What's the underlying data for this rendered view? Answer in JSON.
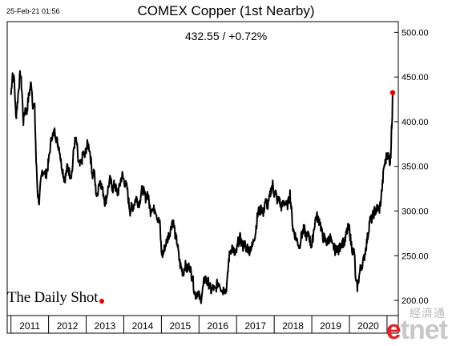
{
  "header": {
    "timestamp": "25-Feb-21 01:56",
    "title": "COMEX Copper (1st Nearby)",
    "subtitle": "432.55  /  +0.72%"
  },
  "brand": {
    "text": "The Daily Shot"
  },
  "watermark": {
    "chinese": "經濟通",
    "e": "e",
    "rest": "tnet"
  },
  "colors": {
    "line": "#000000",
    "last_point": "#e00000",
    "frame": "#000000"
  },
  "chart_data": {
    "type": "line",
    "title": "COMEX Copper (1st Nearby)",
    "subtitle": "432.55  /  +0.72%",
    "xlabel": "",
    "ylabel": "",
    "x_tick_labels": [
      "2011",
      "2012",
      "2013",
      "2014",
      "2015",
      "2016",
      "2017",
      "2018",
      "2019",
      "2020"
    ],
    "y_ticks": [
      200,
      250,
      300,
      350,
      400,
      450,
      500
    ],
    "y_tick_labels": [
      "200.00",
      "250.00",
      "300.00",
      "350.00",
      "400.00",
      "450.00",
      "500.00"
    ],
    "ylim": [
      183,
      512
    ],
    "xlim": [
      2010.9,
      2021.3
    ],
    "grid": false,
    "y_axis_position": "right",
    "last_value": 432.55,
    "last_marker_color": "red",
    "series": [
      {
        "points": [
          [
            2011.0,
            430
          ],
          [
            2011.04,
            455
          ],
          [
            2011.09,
            445
          ],
          [
            2011.13,
            405
          ],
          [
            2011.17,
            420
          ],
          [
            2011.21,
            440
          ],
          [
            2011.25,
            455
          ],
          [
            2011.29,
            435
          ],
          [
            2011.33,
            400
          ],
          [
            2011.38,
            415
          ],
          [
            2011.42,
            410
          ],
          [
            2011.46,
            425
          ],
          [
            2011.5,
            435
          ],
          [
            2011.54,
            445
          ],
          [
            2011.58,
            420
          ],
          [
            2011.63,
            415
          ],
          [
            2011.67,
            355
          ],
          [
            2011.71,
            320
          ],
          [
            2011.75,
            310
          ],
          [
            2011.79,
            330
          ],
          [
            2011.83,
            345
          ],
          [
            2011.88,
            345
          ],
          [
            2011.92,
            340
          ],
          [
            2011.96,
            345
          ],
          [
            2012.0,
            355
          ],
          [
            2012.04,
            370
          ],
          [
            2012.09,
            385
          ],
          [
            2012.13,
            385
          ],
          [
            2012.17,
            390
          ],
          [
            2012.21,
            380
          ],
          [
            2012.25,
            375
          ],
          [
            2012.29,
            370
          ],
          [
            2012.33,
            355
          ],
          [
            2012.38,
            345
          ],
          [
            2012.42,
            335
          ],
          [
            2012.46,
            340
          ],
          [
            2012.5,
            350
          ],
          [
            2012.54,
            345
          ],
          [
            2012.58,
            340
          ],
          [
            2012.63,
            345
          ],
          [
            2012.67,
            370
          ],
          [
            2012.71,
            380
          ],
          [
            2012.75,
            375
          ],
          [
            2012.79,
            355
          ],
          [
            2012.83,
            350
          ],
          [
            2012.88,
            355
          ],
          [
            2012.92,
            365
          ],
          [
            2012.96,
            360
          ],
          [
            2013.0,
            370
          ],
          [
            2013.04,
            375
          ],
          [
            2013.09,
            370
          ],
          [
            2013.13,
            355
          ],
          [
            2013.17,
            340
          ],
          [
            2013.21,
            345
          ],
          [
            2013.25,
            325
          ],
          [
            2013.29,
            315
          ],
          [
            2013.33,
            330
          ],
          [
            2013.38,
            335
          ],
          [
            2013.42,
            325
          ],
          [
            2013.46,
            320
          ],
          [
            2013.5,
            310
          ],
          [
            2013.54,
            315
          ],
          [
            2013.58,
            325
          ],
          [
            2013.63,
            335
          ],
          [
            2013.67,
            330
          ],
          [
            2013.71,
            325
          ],
          [
            2013.75,
            330
          ],
          [
            2013.79,
            325
          ],
          [
            2013.83,
            320
          ],
          [
            2013.88,
            325
          ],
          [
            2013.92,
            335
          ],
          [
            2013.96,
            340
          ],
          [
            2014.0,
            335
          ],
          [
            2014.04,
            330
          ],
          [
            2014.09,
            325
          ],
          [
            2014.13,
            310
          ],
          [
            2014.17,
            300
          ],
          [
            2014.21,
            305
          ],
          [
            2014.25,
            305
          ],
          [
            2014.29,
            310
          ],
          [
            2014.33,
            315
          ],
          [
            2014.38,
            310
          ],
          [
            2014.42,
            310
          ],
          [
            2014.46,
            320
          ],
          [
            2014.5,
            325
          ],
          [
            2014.54,
            320
          ],
          [
            2014.58,
            315
          ],
          [
            2014.63,
            320
          ],
          [
            2014.67,
            310
          ],
          [
            2014.71,
            300
          ],
          [
            2014.75,
            305
          ],
          [
            2014.79,
            300
          ],
          [
            2014.83,
            305
          ],
          [
            2014.88,
            295
          ],
          [
            2014.92,
            290
          ],
          [
            2014.96,
            285
          ],
          [
            2015.0,
            255
          ],
          [
            2015.04,
            250
          ],
          [
            2015.09,
            260
          ],
          [
            2015.13,
            265
          ],
          [
            2015.17,
            270
          ],
          [
            2015.21,
            275
          ],
          [
            2015.25,
            280
          ],
          [
            2015.29,
            290
          ],
          [
            2015.33,
            285
          ],
          [
            2015.38,
            270
          ],
          [
            2015.42,
            265
          ],
          [
            2015.46,
            250
          ],
          [
            2015.5,
            240
          ],
          [
            2015.54,
            235
          ],
          [
            2015.58,
            230
          ],
          [
            2015.63,
            240
          ],
          [
            2015.67,
            235
          ],
          [
            2015.71,
            235
          ],
          [
            2015.75,
            240
          ],
          [
            2015.79,
            230
          ],
          [
            2015.83,
            225
          ],
          [
            2015.88,
            210
          ],
          [
            2015.92,
            205
          ],
          [
            2015.96,
            210
          ],
          [
            2016.0,
            205
          ],
          [
            2016.04,
            200
          ],
          [
            2016.09,
            210
          ],
          [
            2016.13,
            220
          ],
          [
            2016.17,
            225
          ],
          [
            2016.21,
            220
          ],
          [
            2016.25,
            220
          ],
          [
            2016.29,
            215
          ],
          [
            2016.33,
            210
          ],
          [
            2016.38,
            215
          ],
          [
            2016.42,
            210
          ],
          [
            2016.46,
            215
          ],
          [
            2016.5,
            220
          ],
          [
            2016.54,
            220
          ],
          [
            2016.58,
            215
          ],
          [
            2016.63,
            210
          ],
          [
            2016.67,
            215
          ],
          [
            2016.71,
            210
          ],
          [
            2016.75,
            220
          ],
          [
            2016.79,
            245
          ],
          [
            2016.83,
            255
          ],
          [
            2016.88,
            260
          ],
          [
            2016.92,
            255
          ],
          [
            2016.96,
            250
          ],
          [
            2017.0,
            255
          ],
          [
            2017.04,
            265
          ],
          [
            2017.09,
            270
          ],
          [
            2017.13,
            265
          ],
          [
            2017.17,
            260
          ],
          [
            2017.21,
            265
          ],
          [
            2017.25,
            255
          ],
          [
            2017.29,
            260
          ],
          [
            2017.33,
            255
          ],
          [
            2017.38,
            260
          ],
          [
            2017.42,
            260
          ],
          [
            2017.46,
            270
          ],
          [
            2017.5,
            275
          ],
          [
            2017.54,
            290
          ],
          [
            2017.58,
            300
          ],
          [
            2017.63,
            300
          ],
          [
            2017.67,
            305
          ],
          [
            2017.71,
            295
          ],
          [
            2017.75,
            310
          ],
          [
            2017.79,
            310
          ],
          [
            2017.83,
            305
          ],
          [
            2017.88,
            315
          ],
          [
            2017.92,
            325
          ],
          [
            2017.96,
            330
          ],
          [
            2018.0,
            320
          ],
          [
            2018.04,
            320
          ],
          [
            2018.09,
            310
          ],
          [
            2018.13,
            315
          ],
          [
            2018.17,
            305
          ],
          [
            2018.21,
            305
          ],
          [
            2018.25,
            310
          ],
          [
            2018.29,
            310
          ],
          [
            2018.33,
            305
          ],
          [
            2018.38,
            310
          ],
          [
            2018.42,
            320
          ],
          [
            2018.46,
            300
          ],
          [
            2018.5,
            280
          ],
          [
            2018.54,
            275
          ],
          [
            2018.58,
            270
          ],
          [
            2018.63,
            265
          ],
          [
            2018.67,
            260
          ],
          [
            2018.71,
            270
          ],
          [
            2018.75,
            275
          ],
          [
            2018.79,
            280
          ],
          [
            2018.83,
            275
          ],
          [
            2018.88,
            270
          ],
          [
            2018.92,
            275
          ],
          [
            2018.96,
            265
          ],
          [
            2019.0,
            260
          ],
          [
            2019.04,
            275
          ],
          [
            2019.09,
            290
          ],
          [
            2019.13,
            295
          ],
          [
            2019.17,
            290
          ],
          [
            2019.21,
            290
          ],
          [
            2019.25,
            280
          ],
          [
            2019.29,
            270
          ],
          [
            2019.33,
            270
          ],
          [
            2019.38,
            265
          ],
          [
            2019.42,
            265
          ],
          [
            2019.46,
            270
          ],
          [
            2019.5,
            270
          ],
          [
            2019.54,
            260
          ],
          [
            2019.58,
            260
          ],
          [
            2019.63,
            255
          ],
          [
            2019.67,
            260
          ],
          [
            2019.71,
            255
          ],
          [
            2019.75,
            260
          ],
          [
            2019.79,
            265
          ],
          [
            2019.83,
            265
          ],
          [
            2019.88,
            265
          ],
          [
            2019.92,
            275
          ],
          [
            2019.96,
            280
          ],
          [
            2020.0,
            280
          ],
          [
            2020.04,
            265
          ],
          [
            2020.09,
            255
          ],
          [
            2020.13,
            255
          ],
          [
            2020.17,
            220
          ],
          [
            2020.21,
            215
          ],
          [
            2020.25,
            225
          ],
          [
            2020.29,
            235
          ],
          [
            2020.33,
            240
          ],
          [
            2020.38,
            245
          ],
          [
            2020.42,
            255
          ],
          [
            2020.46,
            265
          ],
          [
            2020.5,
            275
          ],
          [
            2020.54,
            290
          ],
          [
            2020.58,
            290
          ],
          [
            2020.63,
            295
          ],
          [
            2020.67,
            300
          ],
          [
            2020.71,
            300
          ],
          [
            2020.75,
            305
          ],
          [
            2020.79,
            300
          ],
          [
            2020.83,
            310
          ],
          [
            2020.88,
            330
          ],
          [
            2020.92,
            350
          ],
          [
            2020.96,
            355
          ],
          [
            2021.0,
            365
          ],
          [
            2021.04,
            360
          ],
          [
            2021.08,
            355
          ],
          [
            2021.1,
            365
          ],
          [
            2021.12,
            390
          ],
          [
            2021.14,
            410
          ],
          [
            2021.15,
            432.55
          ]
        ]
      }
    ]
  }
}
